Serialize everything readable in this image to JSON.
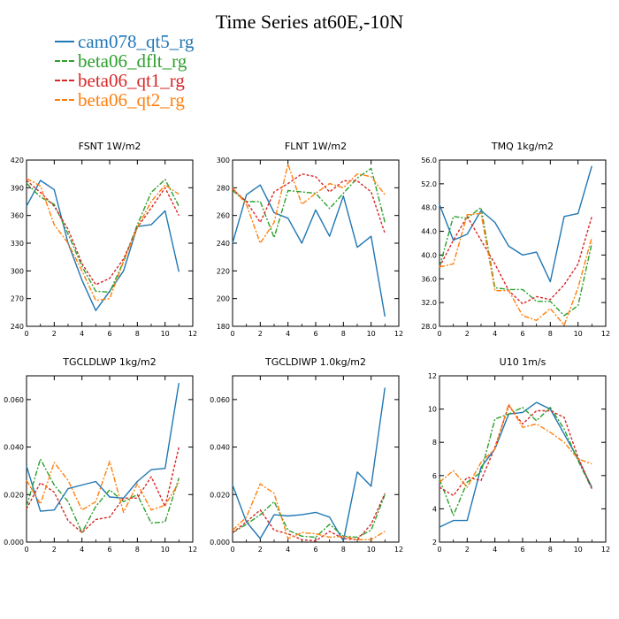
{
  "title": "Time Series at60E,-10N",
  "legend": [
    {
      "name": "cam078_qt5_rg",
      "color": "#1f77b4",
      "dash": "solid"
    },
    {
      "name": "beta06_dflt_rg",
      "color": "#2ca02c",
      "dash": "dashdot"
    },
    {
      "name": "beta06_qt1_rg",
      "color": "#d62728",
      "dash": "dash"
    },
    {
      "name": "beta06_qt2_rg",
      "color": "#ff7f0e",
      "dash": "dashdot"
    }
  ],
  "chart_data": [
    {
      "type": "line",
      "title": "FSNT",
      "units": "1W/m2",
      "xlim": [
        0,
        12
      ],
      "ylim": [
        240,
        420
      ],
      "xticks": [
        "0",
        "2",
        "4",
        "6",
        "8",
        "10",
        "12"
      ],
      "yticks": [
        "240",
        "270",
        "300",
        "330",
        "360",
        "390",
        "420"
      ],
      "x": [
        0,
        1,
        2,
        3,
        4,
        5,
        6,
        7,
        8,
        9,
        10,
        11
      ],
      "series": [
        {
          "name": "cam078_qt5_rg",
          "values": [
            370,
            398,
            388,
            330,
            290,
            257,
            278,
            300,
            348,
            350,
            365,
            299
          ]
        },
        {
          "name": "beta06_dflt_rg",
          "values": [
            395,
            380,
            372,
            340,
            305,
            278,
            277,
            310,
            350,
            385,
            399,
            370
          ]
        },
        {
          "name": "beta06_qt1_rg",
          "values": [
            398,
            385,
            370,
            345,
            308,
            285,
            292,
            313,
            347,
            368,
            390,
            360
          ]
        },
        {
          "name": "beta06_qt2_rg",
          "values": [
            400,
            392,
            350,
            330,
            300,
            268,
            270,
            310,
            347,
            375,
            393,
            383
          ]
        }
      ]
    },
    {
      "type": "line",
      "title": "FLNT",
      "units": "1W/m2",
      "xlim": [
        0,
        12
      ],
      "ylim": [
        180,
        300
      ],
      "xticks": [
        "0",
        "2",
        "4",
        "6",
        "8",
        "10",
        "12"
      ],
      "yticks": [
        "180",
        "200",
        "220",
        "240",
        "260",
        "280",
        "300"
      ],
      "x": [
        0,
        1,
        2,
        3,
        4,
        5,
        6,
        7,
        8,
        9,
        10,
        11
      ],
      "series": [
        {
          "name": "cam078_qt5_rg",
          "values": [
            240,
            275,
            282,
            262,
            258,
            240,
            264,
            245,
            274,
            237,
            245,
            187
          ]
        },
        {
          "name": "beta06_dflt_rg",
          "values": [
            278,
            270,
            270,
            244,
            278,
            277,
            276,
            265,
            276,
            287,
            294,
            255
          ]
        },
        {
          "name": "beta06_qt1_rg",
          "values": [
            279,
            270,
            255,
            277,
            283,
            290,
            288,
            277,
            285,
            285,
            277,
            247
          ]
        },
        {
          "name": "beta06_qt2_rg",
          "values": [
            280,
            268,
            240,
            255,
            297,
            268,
            276,
            283,
            280,
            290,
            288,
            275
          ]
        }
      ]
    },
    {
      "type": "line",
      "title": "TMQ",
      "units": "1kg/m2",
      "xlim": [
        0,
        12
      ],
      "ylim": [
        28,
        56
      ],
      "xticks": [
        "0",
        "2",
        "4",
        "6",
        "8",
        "10",
        "12"
      ],
      "yticks": [
        "28.0",
        "32.0",
        "36.0",
        "40.0",
        "44.0",
        "48.0",
        "52.0",
        "56.0"
      ],
      "x": [
        0,
        1,
        2,
        3,
        4,
        5,
        6,
        7,
        8,
        9,
        10,
        11
      ],
      "series": [
        {
          "name": "cam078_qt5_rg",
          "values": [
            48.5,
            42.5,
            43.5,
            47.5,
            45.5,
            41.5,
            40.0,
            40.5,
            35.5,
            46.5,
            47.0,
            55.0
          ]
        },
        {
          "name": "beta06_dflt_rg",
          "values": [
            38.0,
            46.5,
            46.2,
            48.0,
            34.5,
            34.2,
            34.2,
            32.2,
            32.2,
            29.8,
            31.5,
            42.0
          ]
        },
        {
          "name": "beta06_qt1_rg",
          "values": [
            38.0,
            42.5,
            46.5,
            42.5,
            38.5,
            34.0,
            31.8,
            33.0,
            32.5,
            35.0,
            38.5,
            46.5
          ]
        },
        {
          "name": "beta06_qt2_rg",
          "values": [
            38.0,
            38.5,
            46.8,
            47.0,
            34.0,
            34.0,
            29.8,
            29.0,
            31.0,
            28.2,
            34.5,
            43.0
          ]
        }
      ]
    },
    {
      "type": "line",
      "title": "TGCLDLWP",
      "units": "1kg/m2",
      "xlim": [
        0,
        12
      ],
      "ylim": [
        0,
        0.07
      ],
      "xticks": [
        "0",
        "2",
        "4",
        "6",
        "8",
        "10",
        "12"
      ],
      "yticks": [
        "0.000",
        "0.020",
        "0.040",
        "0.060"
      ],
      "yticks_values": [
        0,
        0.02,
        0.04,
        0.06
      ],
      "x": [
        0,
        1,
        2,
        3,
        4,
        5,
        6,
        7,
        8,
        9,
        10,
        11
      ],
      "series": [
        {
          "name": "cam078_qt5_rg",
          "values": [
            0.032,
            0.013,
            0.0135,
            0.0225,
            0.024,
            0.0255,
            0.019,
            0.0185,
            0.0255,
            0.0305,
            0.031,
            0.067
          ]
        },
        {
          "name": "beta06_dflt_rg",
          "values": [
            0.015,
            0.035,
            0.024,
            0.017,
            0.004,
            0.015,
            0.022,
            0.017,
            0.02,
            0.008,
            0.0085,
            0.027
          ]
        },
        {
          "name": "beta06_qt1_rg",
          "values": [
            0.014,
            0.025,
            0.021,
            0.009,
            0.004,
            0.0095,
            0.0105,
            0.0185,
            0.0185,
            0.0275,
            0.015,
            0.04
          ]
        },
        {
          "name": "beta06_qt2_rg",
          "values": [
            0.026,
            0.016,
            0.0335,
            0.026,
            0.0135,
            0.017,
            0.034,
            0.0125,
            0.0245,
            0.0135,
            0.0155,
            0.025
          ]
        }
      ]
    },
    {
      "type": "line",
      "title": "TGCLDIWP",
      "units": "1.0kg/m2",
      "xlim": [
        0,
        12
      ],
      "ylim": [
        0,
        0.07
      ],
      "xticks": [
        "0",
        "2",
        "4",
        "6",
        "8",
        "10",
        "12"
      ],
      "yticks": [
        "0.000",
        "0.020",
        "0.040",
        "0.060"
      ],
      "yticks_values": [
        0,
        0.02,
        0.04,
        0.06
      ],
      "x": [
        0,
        1,
        2,
        3,
        4,
        5,
        6,
        7,
        8,
        9,
        10,
        11
      ],
      "series": [
        {
          "name": "cam078_qt5_rg",
          "values": [
            0.024,
            0.0085,
            0.0015,
            0.0115,
            0.011,
            0.0115,
            0.0125,
            0.0105,
            0.0005,
            0.0295,
            0.0235,
            0.065
          ]
        },
        {
          "name": "beta06_dflt_rg",
          "values": [
            0.004,
            0.0075,
            0.0115,
            0.017,
            0.005,
            0.0025,
            0.002,
            0.0075,
            0.0025,
            0.002,
            0.005,
            0.02
          ]
        },
        {
          "name": "beta06_qt1_rg",
          "values": [
            0.004,
            0.0085,
            0.0135,
            0.005,
            0.0035,
            0.001,
            0.0005,
            0.0045,
            0.0015,
            0.001,
            0.0075,
            0.0205
          ]
        },
        {
          "name": "beta06_qt2_rg",
          "values": [
            0.005,
            0.0105,
            0.0245,
            0.0205,
            0.0015,
            0.004,
            0.0035,
            0.002,
            0.0025,
            0.001,
            0.001,
            0.0045
          ]
        }
      ]
    },
    {
      "type": "line",
      "title": "U10",
      "units": "1m/s",
      "xlim": [
        0,
        12
      ],
      "ylim": [
        2,
        12
      ],
      "xticks": [
        "0",
        "2",
        "4",
        "6",
        "8",
        "10",
        "12"
      ],
      "yticks": [
        "2",
        "4",
        "6",
        "8",
        "10",
        "12"
      ],
      "x": [
        0,
        1,
        2,
        3,
        4,
        5,
        6,
        7,
        8,
        9,
        10,
        11
      ],
      "series": [
        {
          "name": "cam078_qt5_rg",
          "values": [
            2.9,
            3.3,
            3.3,
            6.5,
            7.6,
            9.7,
            9.8,
            10.4,
            10.0,
            8.5,
            7.0,
            5.3
          ]
        },
        {
          "name": "beta06_dflt_rg",
          "values": [
            5.8,
            3.6,
            5.6,
            6.2,
            9.4,
            9.7,
            10.1,
            9.3,
            10.1,
            8.8,
            6.9,
            5.2
          ]
        },
        {
          "name": "beta06_qt1_rg",
          "values": [
            5.3,
            4.8,
            5.9,
            5.7,
            7.7,
            10.2,
            9.1,
            9.9,
            9.9,
            9.5,
            7.1,
            5.2
          ]
        },
        {
          "name": "beta06_qt2_rg",
          "values": [
            5.6,
            6.3,
            5.3,
            6.8,
            7.6,
            10.3,
            8.9,
            9.1,
            8.6,
            8.0,
            7.0,
            6.7
          ]
        }
      ]
    }
  ]
}
